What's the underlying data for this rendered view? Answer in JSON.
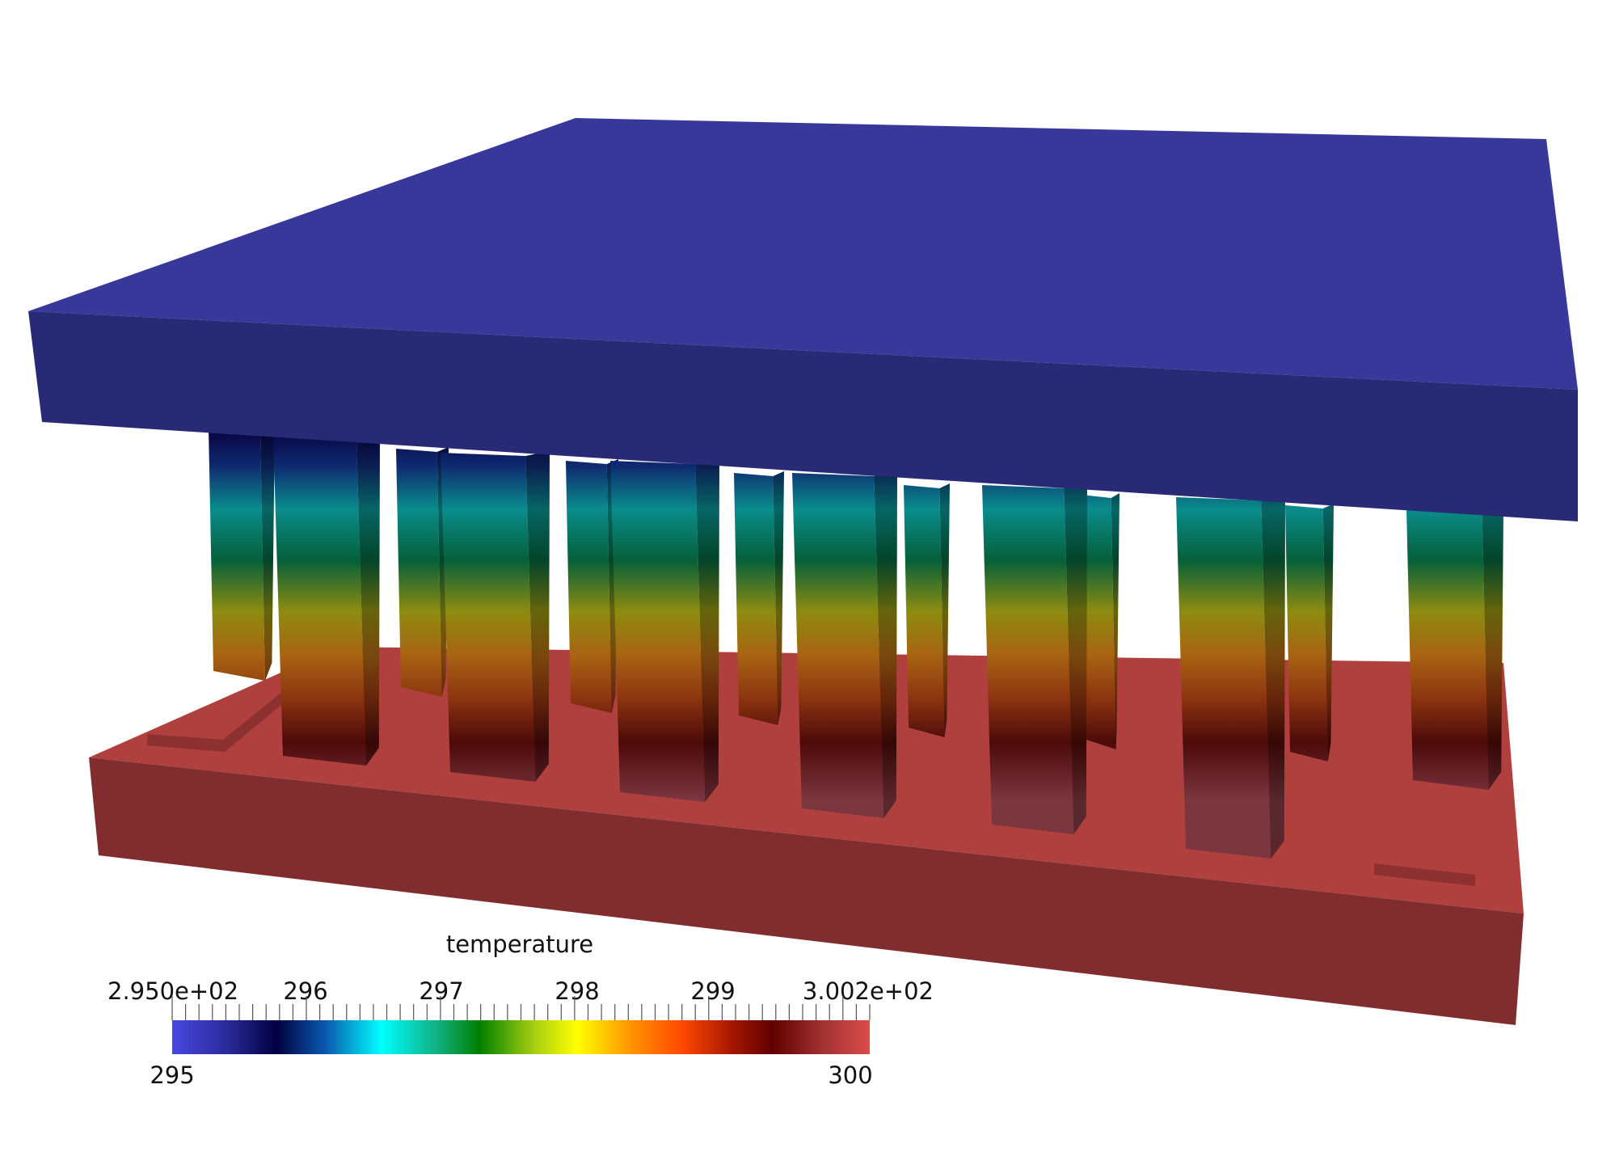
{
  "colorbar": {
    "title": "temperature",
    "range_min_label": "2.950e+02",
    "range_max_label": "3.002e+02",
    "major_ticks": [
      "296",
      "297",
      "298",
      "299"
    ],
    "end_min_label": "295",
    "end_max_label": "300",
    "min_value": 295,
    "max_value": 300.2
  },
  "colors": {
    "top_plate_top": "#38389b",
    "top_plate_front": "#282a76",
    "base_top": "#b0403e",
    "base_front": "#812c2f"
  }
}
